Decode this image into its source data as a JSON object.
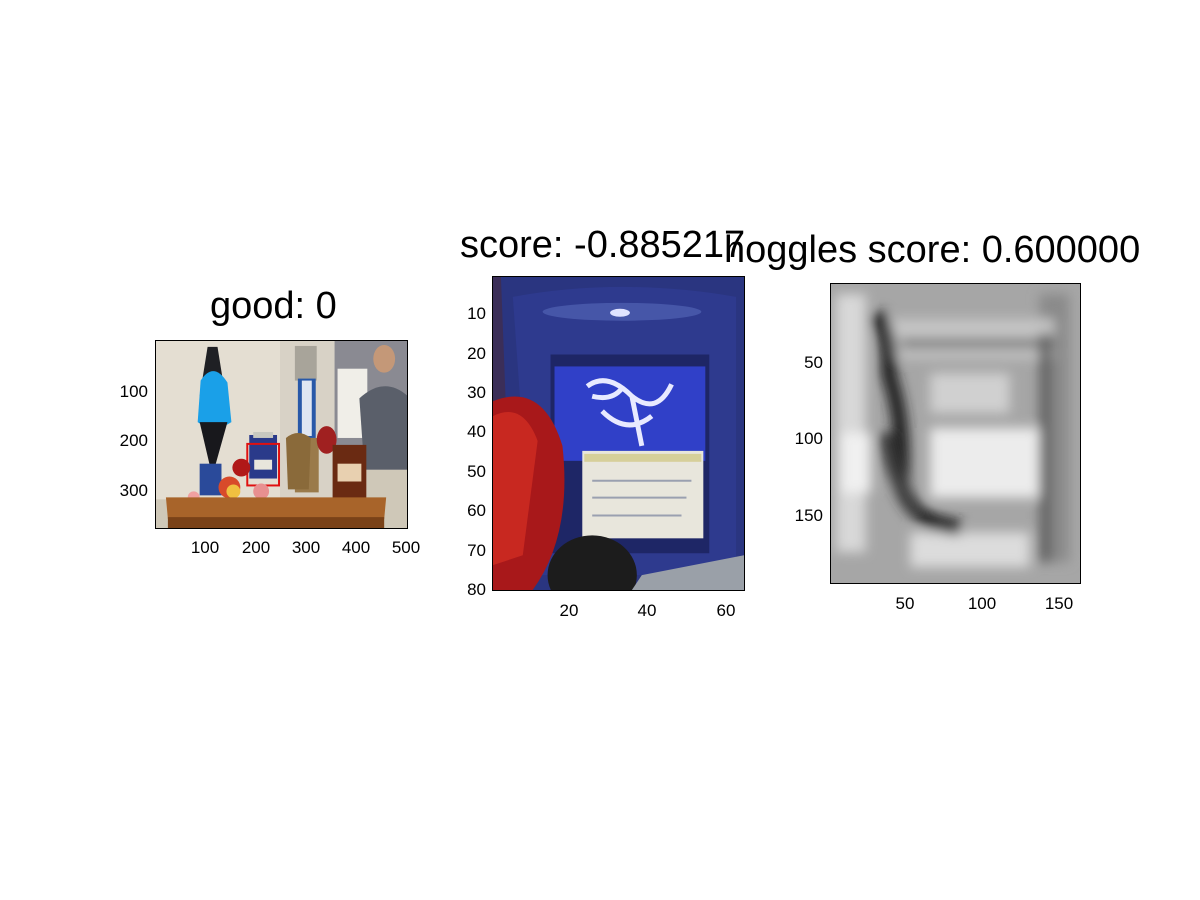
{
  "panels": [
    {
      "title": "good: 0",
      "y_ticks": [
        "100",
        "200",
        "300"
      ],
      "x_ticks": [
        "100",
        "200",
        "300",
        "400",
        "500"
      ],
      "image": "photo of a shelf with a lava lamp, candle jars, vases and a smiling man in the background; red box marks a blue candle jar"
    },
    {
      "title": "score: -0.885217",
      "y_ticks": [
        "10",
        "20",
        "30",
        "40",
        "50",
        "60",
        "70",
        "80"
      ],
      "x_ticks": [
        "20",
        "40",
        "60"
      ],
      "image": "crop of a blue candle jar with a white label"
    },
    {
      "title": "hoggles score: 0.600000",
      "y_ticks": [
        "50",
        "100",
        "150"
      ],
      "x_ticks": [
        "50",
        "100",
        "150"
      ],
      "image": "grayscale HOG inversion of the crop"
    }
  ],
  "colors": {
    "detection_box": "#e01010",
    "jar_blue": "#2a3a8a",
    "label_white": "#e8e6dc"
  }
}
